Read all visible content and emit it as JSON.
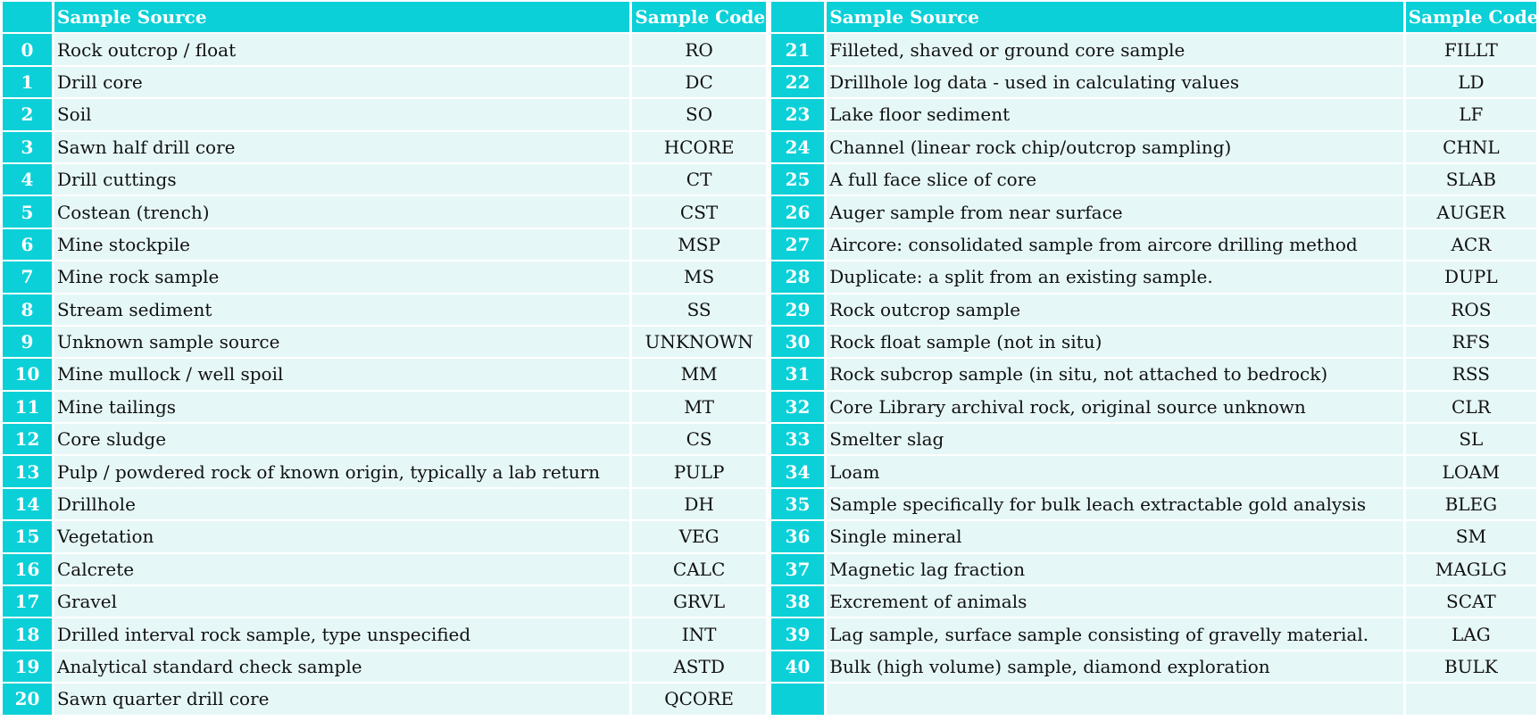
{
  "headers": {
    "source": "Sample Source",
    "code": "Sample Code"
  },
  "left": [
    {
      "idx": "0",
      "source": "Rock outcrop / float",
      "code": "RO"
    },
    {
      "idx": "1",
      "source": "Drill core",
      "code": "DC"
    },
    {
      "idx": "2",
      "source": "Soil",
      "code": "SO"
    },
    {
      "idx": "3",
      "source": "Sawn half drill core",
      "code": "HCORE"
    },
    {
      "idx": "4",
      "source": "Drill cuttings",
      "code": "CT"
    },
    {
      "idx": "5",
      "source": "Costean (trench)",
      "code": "CST"
    },
    {
      "idx": "6",
      "source": "Mine stockpile",
      "code": "MSP"
    },
    {
      "idx": "7",
      "source": "Mine rock sample",
      "code": "MS"
    },
    {
      "idx": "8",
      "source": "Stream sediment",
      "code": "SS"
    },
    {
      "idx": "9",
      "source": "Unknown sample source",
      "code": "UNKNOWN"
    },
    {
      "idx": "10",
      "source": "Mine mullock / well spoil",
      "code": "MM"
    },
    {
      "idx": "11",
      "source": "Mine tailings",
      "code": "MT"
    },
    {
      "idx": "12",
      "source": "Core sludge",
      "code": "CS"
    },
    {
      "idx": "13",
      "source": "Pulp / powdered rock of known origin, typically a lab return",
      "code": "PULP"
    },
    {
      "idx": "14",
      "source": "Drillhole",
      "code": "DH"
    },
    {
      "idx": "15",
      "source": "Vegetation",
      "code": "VEG"
    },
    {
      "idx": "16",
      "source": "Calcrete",
      "code": "CALC"
    },
    {
      "idx": "17",
      "source": "Gravel",
      "code": "GRVL"
    },
    {
      "idx": "18",
      "source": "Drilled interval rock sample, type unspecified",
      "code": "INT"
    },
    {
      "idx": "19",
      "source": "Analytical standard check sample",
      "code": "ASTD"
    },
    {
      "idx": "20",
      "source": "Sawn quarter drill core",
      "code": "QCORE"
    }
  ],
  "right": [
    {
      "idx": "21",
      "source": "Filleted, shaved or ground core sample",
      "code": "FILLT"
    },
    {
      "idx": "22",
      "source": "Drillhole log data - used in calculating values",
      "code": "LD"
    },
    {
      "idx": "23",
      "source": "Lake floor sediment",
      "code": "LF"
    },
    {
      "idx": "24",
      "source": "Channel (linear rock chip/outcrop sampling)",
      "code": "CHNL"
    },
    {
      "idx": "25",
      "source": "A full face slice of core",
      "code": "SLAB"
    },
    {
      "idx": "26",
      "source": "Auger sample from near surface",
      "code": "AUGER"
    },
    {
      "idx": "27",
      "source": "Aircore: consolidated sample from aircore drilling method",
      "code": "ACR"
    },
    {
      "idx": "28",
      "source": "Duplicate: a split from an existing sample.",
      "code": "DUPL"
    },
    {
      "idx": "29",
      "source": "Rock outcrop sample",
      "code": "ROS"
    },
    {
      "idx": "30",
      "source": "Rock float sample (not in situ)",
      "code": "RFS"
    },
    {
      "idx": "31",
      "source": "Rock subcrop sample (in situ, not attached to bedrock)",
      "code": "RSS"
    },
    {
      "idx": "32",
      "source": "Core Library archival rock, original source unknown",
      "code": "CLR"
    },
    {
      "idx": "33",
      "source": "Smelter slag",
      "code": "SL"
    },
    {
      "idx": "34",
      "source": "Loam",
      "code": "LOAM"
    },
    {
      "idx": "35",
      "source": "Sample specifically for bulk leach extractable gold analysis",
      "code": "BLEG"
    },
    {
      "idx": "36",
      "source": "Single mineral",
      "code": "SM"
    },
    {
      "idx": "37",
      "source": "Magnetic lag fraction",
      "code": "MAGLG"
    },
    {
      "idx": "38",
      "source": "Excrement of animals",
      "code": "SCAT"
    },
    {
      "idx": "39",
      "source": "Lag sample, surface sample consisting of gravelly material.",
      "code": "LAG"
    },
    {
      "idx": "40",
      "source": "Bulk (high volume) sample, diamond exploration",
      "code": "BULK"
    },
    {
      "idx": "",
      "source": "",
      "code": ""
    }
  ],
  "colors": {
    "header_bg": "#0cd0d8",
    "cell_bg": "#e6f7f7",
    "header_text": "#ffffff"
  }
}
